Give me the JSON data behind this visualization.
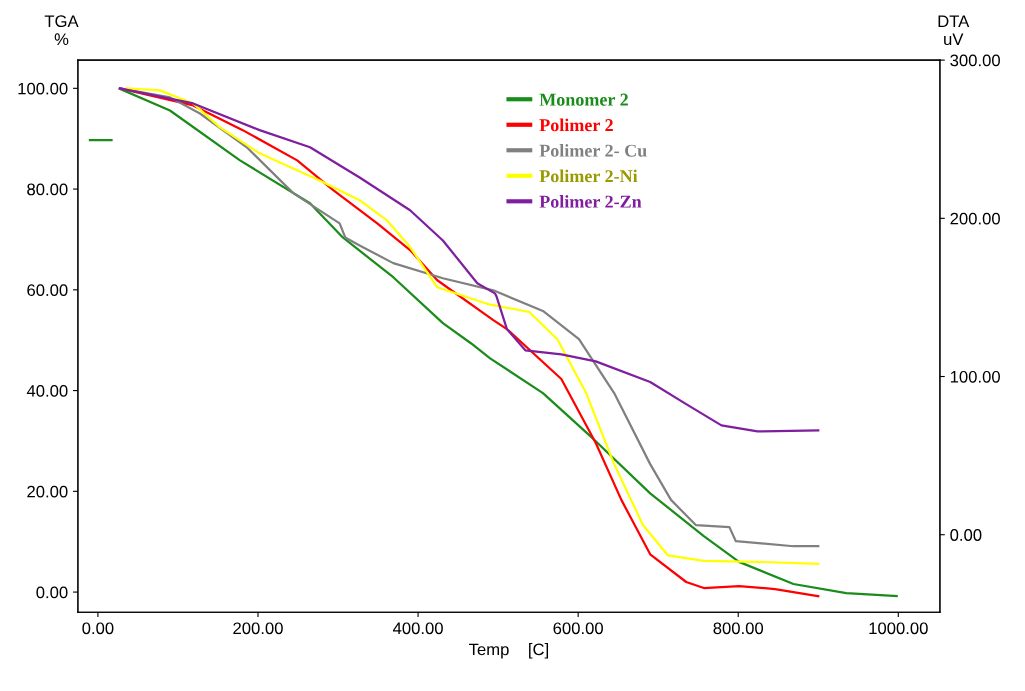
{
  "chart_data": {
    "type": "line",
    "xlabel": "Temp    [C]",
    "ylabel": "TGA\n%",
    "y2label": "DTA\nuV",
    "xlim": [
      -25,
      1052
    ],
    "ylim": [
      -4,
      105.6
    ],
    "y2lim": [
      -49,
      300
    ],
    "xticks": [
      {
        "value": 0,
        "label": "0.00"
      },
      {
        "value": 200,
        "label": "200.00"
      },
      {
        "value": 400,
        "label": "400.00"
      },
      {
        "value": 600,
        "label": "600.00"
      },
      {
        "value": 800,
        "label": "800.00"
      },
      {
        "value": 1000,
        "label": "1000.00"
      }
    ],
    "yticks": [
      {
        "value": 0,
        "label": "0.00"
      },
      {
        "value": 20,
        "label": "20.00"
      },
      {
        "value": 40,
        "label": "40.00"
      },
      {
        "value": 60,
        "label": "60.00"
      },
      {
        "value": 80,
        "label": "80.00"
      },
      {
        "value": 100,
        "label": "100.00"
      }
    ],
    "y2ticks": [
      {
        "value": 0,
        "label": "0.00"
      },
      {
        "value": 100,
        "label": "100.00"
      },
      {
        "value": 200,
        "label": "200.00"
      },
      {
        "value": 300,
        "label": "300.00"
      }
    ],
    "grid": false,
    "legend": "top",
    "marker": "none",
    "line_style": "solid",
    "series": [
      {
        "name": "Monomer 2",
        "color": "#1a8c1a",
        "x": [
          27.5,
          90,
          177.5,
          265,
          306,
          369,
          431,
          466,
          490,
          556,
          619,
          690,
          757,
          801,
          869,
          935,
          998
        ],
        "values": [
          99.9,
          95.6,
          85.7,
          77.2,
          70.4,
          62.5,
          53.4,
          49.4,
          46.4,
          39.5,
          30.4,
          19.6,
          11.1,
          6.0,
          1.6,
          -0.2,
          -0.8
        ]
      },
      {
        "name": "Polimer 2",
        "color": "#ff0000",
        "x": [
          27.5,
          119,
          181,
          249,
          294,
          349,
          390,
          424,
          494,
          511,
          579,
          622,
          654,
          690,
          735,
          757,
          801,
          846,
          900
        ],
        "values": [
          100,
          96.6,
          91.7,
          85.7,
          79.8,
          73.2,
          67.9,
          61.9,
          54,
          52.2,
          42.3,
          29.6,
          18.3,
          7.5,
          2.0,
          0.8,
          1.2,
          0.6,
          -0.8
        ]
      },
      {
        "name": "Polimer 2- Cu",
        "color": "#808080",
        "x": [
          27.5,
          90,
          127.5,
          186,
          244,
          302,
          309,
          327,
          369,
          431,
          494,
          556,
          601,
          645,
          690,
          716,
          747,
          789,
          797,
          869,
          900
        ],
        "values": [
          100,
          98.2,
          95,
          88.3,
          79.2,
          73.2,
          70.4,
          68.8,
          65.3,
          62.3,
          59.9,
          55.8,
          50.2,
          39.5,
          25.4,
          18.3,
          13.3,
          12.9,
          10.1,
          9.1,
          9.1
        ]
      },
      {
        "name": "Polimer 2-Ni",
        "color": "#ffff00",
        "x": [
          36,
          77.5,
          119,
          152,
          202,
          277,
          327,
          361,
          390,
          424,
          489,
          539,
          574,
          610,
          645,
          681,
          712,
          757,
          824,
          900
        ],
        "values": [
          100,
          99.6,
          97,
          92.3,
          87.1,
          81.7,
          77.8,
          73.8,
          68.5,
          60.5,
          57.1,
          55.6,
          50.2,
          39.5,
          25.4,
          13.3,
          7.3,
          6.2,
          6.0,
          5.6
        ]
      },
      {
        "name": "Polimer 2-Zn",
        "color": "#7f1f9f",
        "x": [
          27.5,
          119,
          202,
          265,
          327,
          390,
          431,
          474,
          496,
          498,
          511,
          534,
          579,
          622,
          690,
          735,
          779,
          824,
          900
        ],
        "values": [
          100,
          97,
          91.7,
          88.3,
          82.3,
          75.8,
          69.8,
          61.3,
          59.3,
          58.7,
          52.2,
          48.0,
          47.2,
          45.8,
          41.7,
          37.3,
          33.1,
          31.9,
          32.1
        ]
      },
      {
        "color": "#1a8c1a",
        "x": [
          -10,
          17
        ],
        "values": [
          89.7,
          89.7
        ]
      }
    ]
  }
}
